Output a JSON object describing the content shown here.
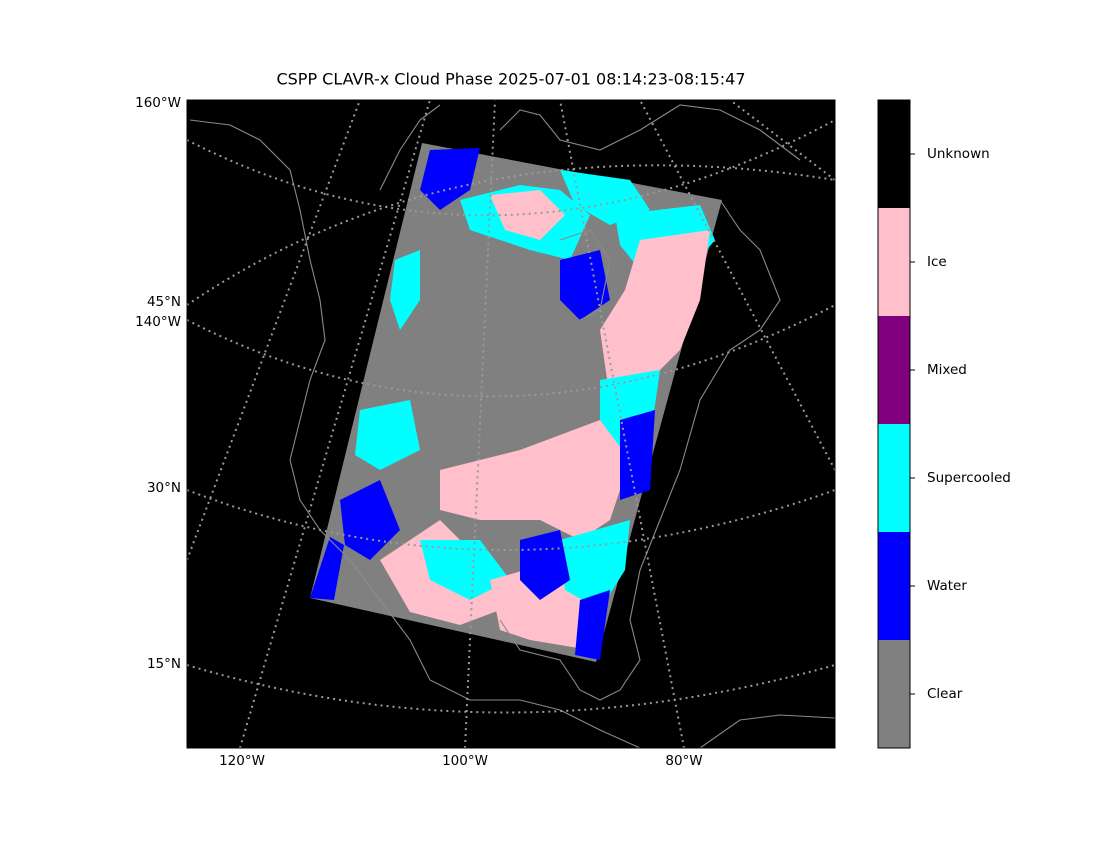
{
  "title": "CSPP CLAVR-x Cloud Phase 2025-07-01 08:14:23-08:15:47",
  "map": {
    "left_labels": [
      "160°W",
      "45°N",
      "140°W",
      "30°N",
      "15°N"
    ],
    "bottom_labels": [
      "120°W",
      "100°W",
      "80°W"
    ]
  },
  "legend": {
    "classes": [
      {
        "name": "Clear",
        "color": "#808080"
      },
      {
        "name": "Water",
        "color": "#0000ff"
      },
      {
        "name": "Supercooled",
        "color": "#00ffff"
      },
      {
        "name": "Mixed",
        "color": "#800080"
      },
      {
        "name": "Ice",
        "color": "#ffc0cb"
      },
      {
        "name": "Unknown",
        "color": "#000000"
      }
    ]
  }
}
